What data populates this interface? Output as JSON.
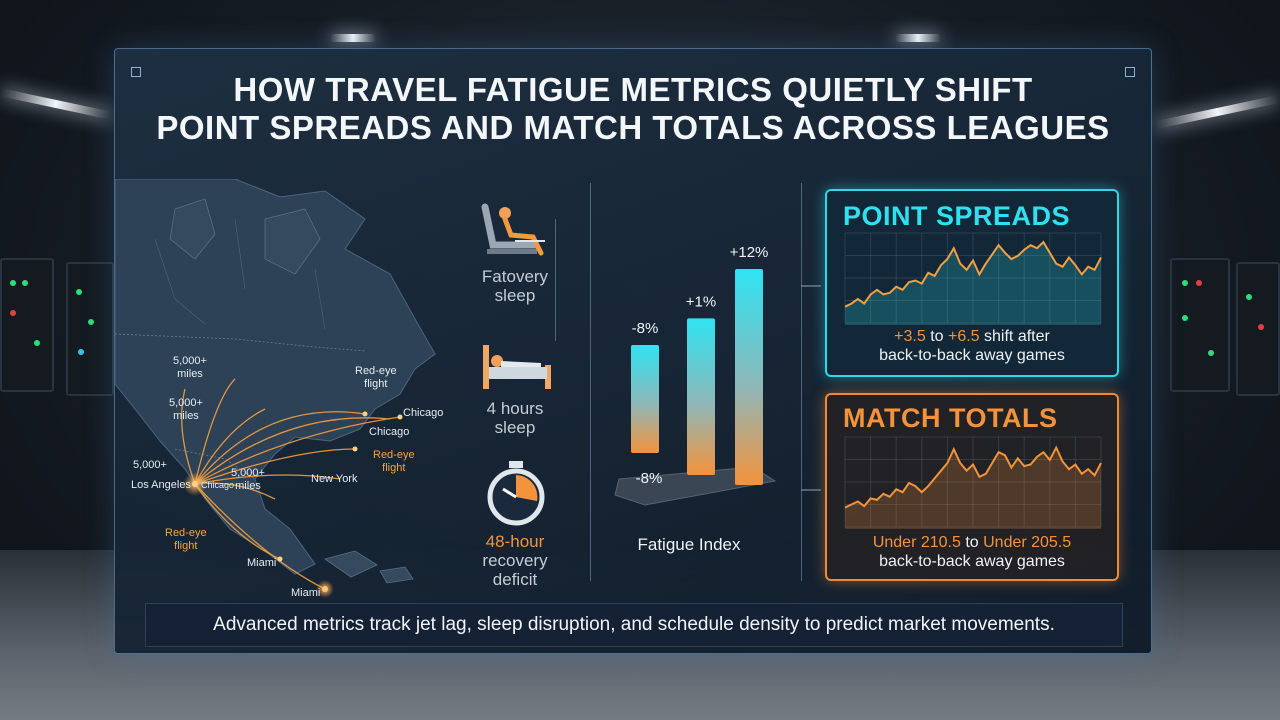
{
  "title": {
    "line1": "HOW TRAVEL FATIGUE METRICS QUIETLY SHIFT",
    "line2": "POINT SPREADS AND MATCH TOTALS ACROSS LEAGUES"
  },
  "map": {
    "labels": [
      {
        "text": "5,000+\nmiles",
        "style": "white"
      },
      {
        "text": "5,000+\nmiles",
        "style": "white"
      },
      {
        "text": "5,000+",
        "style": "white"
      },
      {
        "text": "Los Angeles",
        "style": "white"
      },
      {
        "text": "Chicago",
        "style": "white"
      },
      {
        "text": "5,000+\nmiles",
        "style": "white"
      },
      {
        "text": "Red-eye\nflight",
        "style": "white"
      },
      {
        "text": "Chicago",
        "style": "white"
      },
      {
        "text": "Chicago",
        "style": "white"
      },
      {
        "text": "Red-eye\nflight",
        "style": "orange"
      },
      {
        "text": "New York",
        "style": "white"
      },
      {
        "text": "Red-eye\nflight",
        "style": "orange"
      },
      {
        "text": "Miami",
        "style": "white"
      },
      {
        "text": "Miami",
        "style": "white"
      }
    ]
  },
  "icons": {
    "items": [
      {
        "icon": "reclining-seat-icon",
        "label": "Fatovery\nsleep"
      },
      {
        "icon": "bed-icon",
        "label": "4 hours\nsleep"
      },
      {
        "icon": "stopwatch-icon",
        "label_highlight": "48-hour",
        "label": "recovery\ndeficit"
      }
    ]
  },
  "fatigue_chart": {
    "label": "Fatigue Index",
    "base_label": "-8%"
  },
  "chart_data": [
    {
      "type": "bar",
      "title": "",
      "categories": [
        "",
        "",
        ""
      ],
      "values": [
        -8,
        1,
        12
      ],
      "data_labels": [
        "-8%",
        "+1%",
        "+12%"
      ],
      "xlabel": "Fatigue Index",
      "colors": [
        "#2fe3f2",
        "#f4933c"
      ]
    },
    {
      "type": "line",
      "title": "POINT SPREADS",
      "x": [
        0,
        1,
        2,
        3,
        4,
        5,
        6,
        7,
        8,
        9,
        10,
        11,
        12,
        13,
        14,
        15,
        16,
        17,
        18,
        19,
        20,
        21,
        22,
        23,
        24,
        25,
        26,
        27,
        28,
        29,
        30,
        31,
        32,
        33,
        34,
        35,
        36,
        37,
        38,
        39,
        40
      ],
      "series": [
        {
          "values": [
            0.8,
            1.0,
            1.3,
            1.0,
            1.6,
            1.9,
            1.6,
            1.7,
            2.1,
            1.9,
            2.4,
            2.5,
            2.3,
            3.0,
            2.8,
            3.5,
            3.9,
            4.6,
            3.6,
            3.2,
            3.8,
            2.9,
            3.6,
            4.2,
            4.8,
            4.3,
            3.9,
            4.1,
            4.5,
            4.8,
            4.6,
            5.0,
            4.3,
            3.6,
            3.4,
            4.0,
            3.5,
            2.9,
            3.4,
            3.2,
            4.0
          ]
        }
      ],
      "caption_parts": [
        "+3.5",
        " to ",
        "+6.5",
        " shift after",
        "back-to-back away games"
      ],
      "color": "#2fe0ef"
    },
    {
      "type": "line",
      "title": "MATCH TOTALS",
      "x": [
        0,
        1,
        2,
        3,
        4,
        5,
        6,
        7,
        8,
        9,
        10,
        11,
        12,
        13,
        14,
        15,
        16,
        17,
        18,
        19,
        20,
        21,
        22,
        23,
        24,
        25,
        26,
        27,
        28,
        29,
        30,
        31,
        32,
        33,
        34,
        35,
        36,
        37,
        38,
        39,
        40
      ],
      "series": [
        {
          "values": [
            1.0,
            1.2,
            1.4,
            1.1,
            1.6,
            1.5,
            1.9,
            1.7,
            2.2,
            2.0,
            2.6,
            2.4,
            2.0,
            2.4,
            2.9,
            3.4,
            3.9,
            4.8,
            3.9,
            3.4,
            3.8,
            3.0,
            3.2,
            3.9,
            4.6,
            4.4,
            3.6,
            4.2,
            3.7,
            3.8,
            4.3,
            4.6,
            4.1,
            4.9,
            4.0,
            3.5,
            3.8,
            3.2,
            3.5,
            3.1,
            3.9
          ]
        }
      ],
      "caption_parts": [
        "Under 210.5",
        " to ",
        "Under 205.5",
        "",
        "back-to-back away games"
      ],
      "color": "#f4933c"
    }
  ],
  "footer": {
    "text": "Advanced metrics track jet lag, sleep disruption, and schedule density to predict market movements."
  },
  "colors": {
    "cyan": "#2fe0ef",
    "orange": "#f4933c",
    "panel": "#1b2d40"
  }
}
